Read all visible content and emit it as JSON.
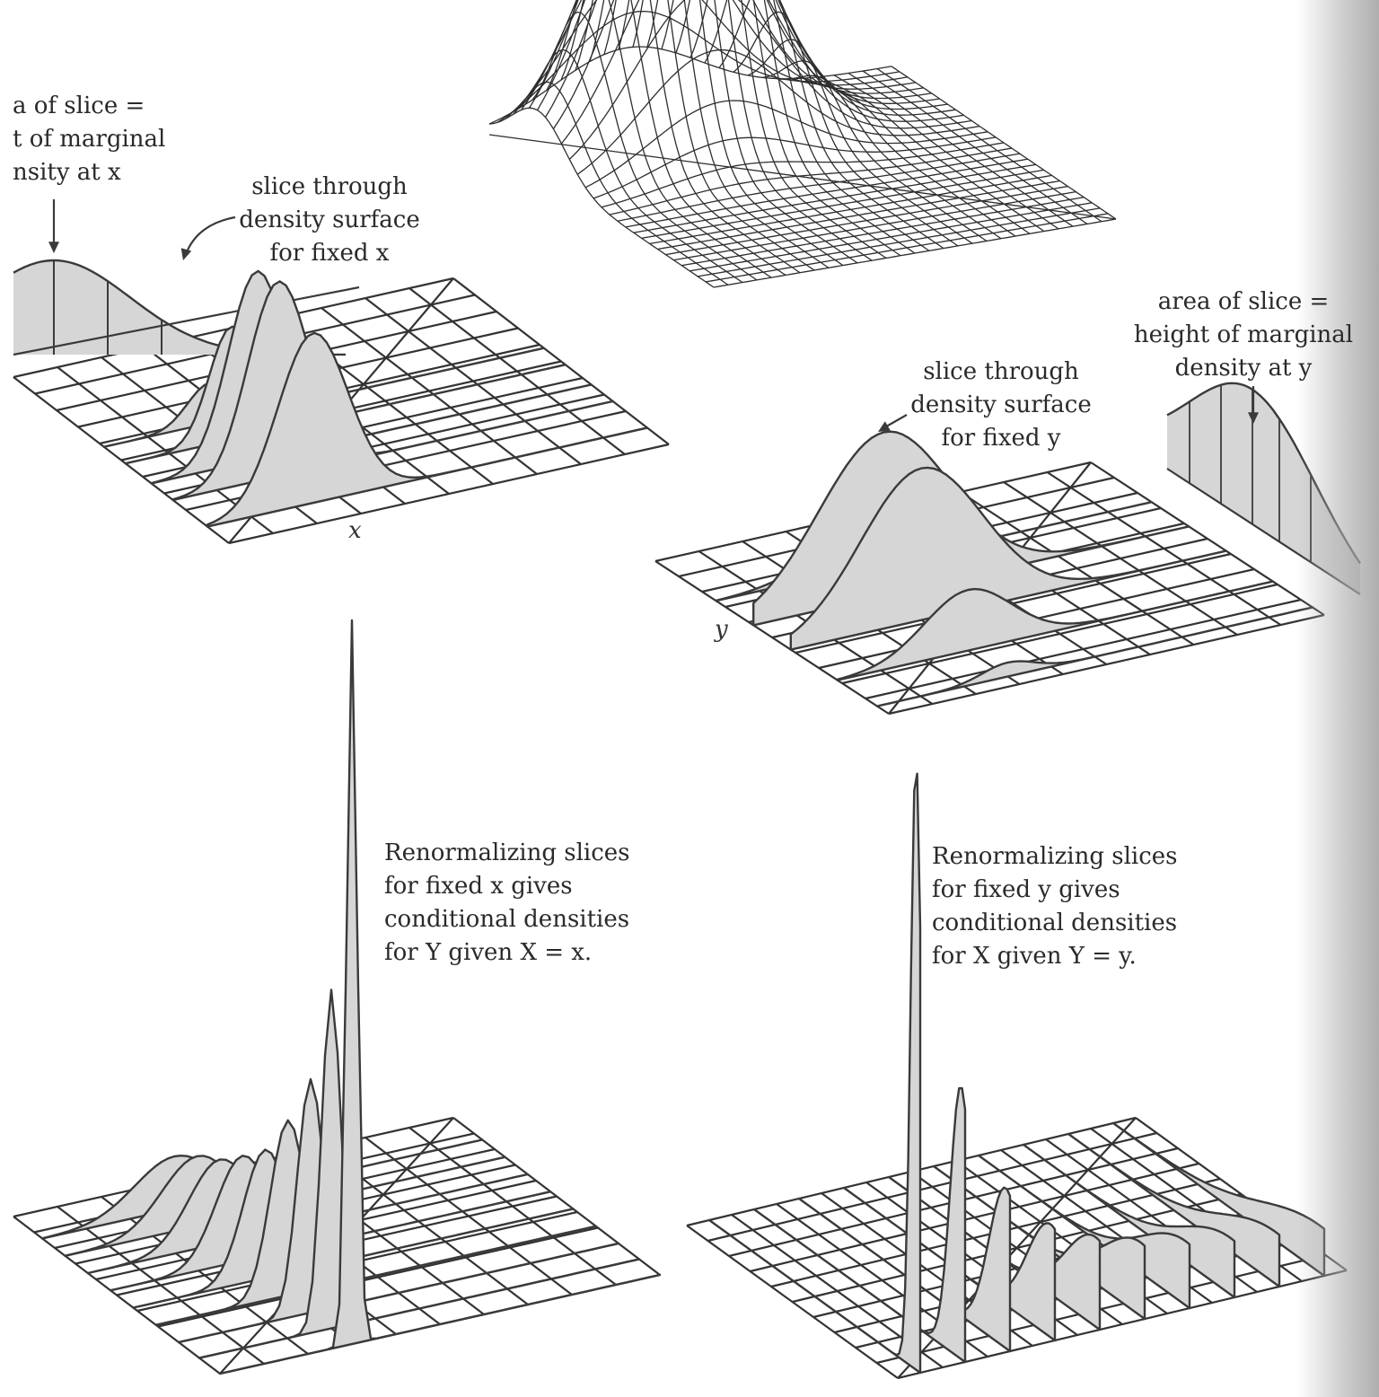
{
  "labels": {
    "marginal_x": [
      "a of slice =",
      "t of marginal",
      "nsity at x"
    ],
    "slice_x": [
      "slice through",
      "density surface",
      "for fixed x"
    ],
    "axis_x": "x",
    "marginal_y": [
      "area of slice =",
      "height of marginal",
      "density at y"
    ],
    "slice_y": [
      "slice through",
      "density surface",
      "for fixed y"
    ],
    "axis_y": "y",
    "renorm_x": [
      "Renormalizing slices",
      "for fixed x gives",
      "conditional densities",
      "for Y given X = x."
    ],
    "renorm_y": [
      "Renormalizing slices",
      "for fixed y gives",
      "conditional densities",
      "for X given Y = y."
    ]
  },
  "colors": {
    "line": "#3a3a3a",
    "fill": "#d6d6d6",
    "grid": "#333333",
    "background": "#ffffff"
  }
}
